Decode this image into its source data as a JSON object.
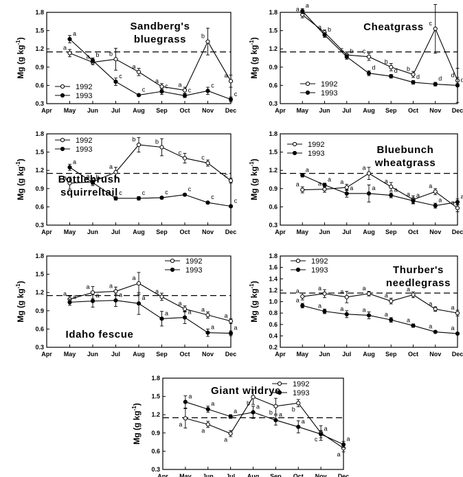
{
  "figure": {
    "ylabel": "Mg (g kg",
    "ylabel_sup": "-1",
    "ylabel_close": ")"
  },
  "chart_data": [
    {
      "type": "line",
      "title_lines": [
        "Sandberg's",
        "bluegrass"
      ],
      "categories": [
        "Apr",
        "May",
        "Jun",
        "Jul",
        "Aug",
        "Sep",
        "Oct",
        "Nov",
        "Dec"
      ],
      "ylim": [
        0.3,
        1.8
      ],
      "yticks": [
        "0.3",
        "0.6",
        "0.9",
        "1.2",
        "1.5",
        "1.8"
      ],
      "reference_line": 1.15,
      "legend": {
        "position": "bottom-left"
      },
      "series": [
        {
          "name": "1992",
          "marker": "open",
          "x": [
            1,
            2,
            3,
            4,
            5,
            6,
            7,
            8
          ],
          "values": [
            1.13,
            0.98,
            1.03,
            0.82,
            0.58,
            0.52,
            1.32,
            0.67
          ],
          "errors": [
            0.06,
            0.04,
            0.18,
            0.06,
            0.05,
            0.05,
            0.22,
            0.1
          ],
          "labels": [
            "a",
            "a",
            "b",
            "a",
            "a",
            "a",
            "b",
            "a"
          ]
        },
        {
          "name": "1993",
          "marker": "filled",
          "x": [
            1,
            2,
            3,
            4,
            5,
            6,
            7,
            8
          ],
          "values": [
            1.36,
            1.01,
            0.66,
            0.44,
            0.5,
            0.43,
            0.51,
            0.37
          ],
          "errors": [
            0.06,
            0.04,
            0.06,
            0.02,
            0.05,
            0.03,
            0.06,
            0.04
          ],
          "labels": [
            "a",
            "b",
            "c",
            "c",
            "c",
            "c",
            "c",
            "c"
          ]
        }
      ]
    },
    {
      "type": "line",
      "title_lines": [
        "Cheatgrass"
      ],
      "categories": [
        "Apr",
        "May",
        "Jun",
        "Jul",
        "Aug",
        "Sep",
        "Oct",
        "Nov",
        "Dec"
      ],
      "ylim": [
        0.3,
        1.8
      ],
      "yticks": [
        "0.3",
        "0.6",
        "0.9",
        "1.2",
        "1.5",
        "1.8"
      ],
      "reference_line": 1.15,
      "legend": {
        "position": "bottom-center"
      },
      "series": [
        {
          "name": "1992",
          "marker": "open",
          "x": [
            1,
            2,
            3,
            4,
            5,
            6,
            7,
            8
          ],
          "values": [
            1.76,
            1.47,
            1.1,
            1.07,
            0.9,
            0.78,
            1.53,
            0.68
          ],
          "errors": [
            0.05,
            0.04,
            0.05,
            0.06,
            0.06,
            0.05,
            0.4,
            0.05
          ],
          "labels": [
            "a",
            "a",
            "c",
            "c",
            "b",
            "b",
            "c",
            "d"
          ]
        },
        {
          "name": "1993",
          "marker": "filled",
          "x": [
            1,
            2,
            3,
            4,
            5,
            6,
            7,
            8
          ],
          "values": [
            1.82,
            1.43,
            1.07,
            0.8,
            0.75,
            0.65,
            0.62,
            0.6
          ],
          "errors": [
            0.04,
            0.04,
            0.04,
            0.04,
            0.03,
            0.03,
            0.03,
            0.28
          ],
          "labels": [
            "a",
            "b",
            "b",
            "d",
            "d",
            "d",
            "d",
            "d"
          ]
        }
      ]
    },
    {
      "type": "line",
      "title_lines": [
        "Bottlebrush",
        "squirreltail"
      ],
      "categories": [
        "Apr",
        "May",
        "Jun",
        "Jul",
        "Aug",
        "Sep",
        "Oct",
        "Nov",
        "Dec"
      ],
      "ylim": [
        0.3,
        1.8
      ],
      "yticks": [
        "0.3",
        "0.6",
        "0.9",
        "1.2",
        "1.5",
        "1.8"
      ],
      "reference_line": 1.15,
      "legend": {
        "position": "top-left"
      },
      "series": [
        {
          "name": "1992",
          "marker": "open",
          "x": [
            1,
            2,
            3,
            4,
            5,
            6,
            7,
            8
          ],
          "values": [
            0.99,
            1.01,
            1.17,
            1.62,
            1.58,
            1.4,
            1.32,
            1.03
          ],
          "errors": [
            0.1,
            0.06,
            0.08,
            0.12,
            0.14,
            0.08,
            0.05,
            0.04
          ],
          "labels": [
            "a",
            "a",
            "a",
            "b",
            "b",
            "c",
            "c",
            "c"
          ]
        },
        {
          "name": "1993",
          "marker": "filled",
          "x": [
            1,
            2,
            3,
            4,
            5,
            6,
            7,
            8
          ],
          "values": [
            1.25,
            1.0,
            0.74,
            0.74,
            0.75,
            0.8,
            0.67,
            0.61
          ],
          "errors": [
            0.05,
            0.03,
            0.03,
            0.03,
            0.02,
            0.02,
            0.02,
            0.02
          ],
          "labels": [
            "a",
            "b",
            "c",
            "c",
            "c",
            "c",
            "c",
            "c"
          ]
        }
      ]
    },
    {
      "type": "line",
      "title_lines": [
        "Bluebunch",
        "wheatgrass"
      ],
      "categories": [
        "Apr",
        "May",
        "Jun",
        "Jul",
        "Aug",
        "Sep",
        "Oct",
        "Nov",
        "Dec"
      ],
      "ylim": [
        0.3,
        1.8
      ],
      "yticks": [
        "0.3",
        "0.6",
        "0.9",
        "1.2",
        "1.5",
        "1.8"
      ],
      "reference_line": 1.15,
      "legend": {
        "position": "top-left"
      },
      "series": [
        {
          "name": "1992",
          "marker": "open",
          "x": [
            1,
            2,
            3,
            4,
            5,
            6,
            7,
            8
          ],
          "values": [
            0.88,
            0.89,
            0.92,
            1.15,
            0.93,
            0.72,
            0.85,
            0.58
          ],
          "errors": [
            0.05,
            0.05,
            0.05,
            0.1,
            0.07,
            0.06,
            0.05,
            0.06
          ],
          "labels": [
            "a",
            "a",
            "a",
            "a",
            "a",
            "a",
            "a",
            "a"
          ]
        },
        {
          "name": "1993",
          "marker": "filled",
          "x": [
            1,
            2,
            3,
            4,
            5,
            6,
            7,
            8
          ],
          "values": [
            1.12,
            0.96,
            0.82,
            0.82,
            0.79,
            0.7,
            0.62,
            0.68
          ],
          "errors": [
            0.03,
            0.03,
            0.06,
            0.14,
            0.04,
            0.05,
            0.04,
            0.05
          ],
          "labels": [
            "a",
            "a",
            "a",
            "a",
            "a",
            "a",
            "a",
            "a"
          ]
        }
      ]
    },
    {
      "type": "line",
      "title_lines": [
        "Idaho fescue"
      ],
      "categories": [
        "Apr",
        "May",
        "Jun",
        "Jul",
        "Aug",
        "Sep",
        "Oct",
        "Nov",
        "Dec"
      ],
      "ylim": [
        0.3,
        1.8
      ],
      "yticks": [
        "0.3",
        "0.6",
        "0.9",
        "1.2",
        "1.5",
        "1.8"
      ],
      "reference_line": 1.15,
      "legend": {
        "position": "top-right"
      },
      "series": [
        {
          "name": "1992",
          "marker": "open",
          "x": [
            1,
            2,
            3,
            4,
            5,
            6,
            7,
            8
          ],
          "values": [
            1.09,
            1.2,
            1.22,
            1.35,
            1.13,
            0.93,
            0.83,
            0.73
          ],
          "errors": [
            0.05,
            0.1,
            0.07,
            0.18,
            0.06,
            0.05,
            0.05,
            0.04
          ],
          "labels": [
            "a",
            "a",
            "a",
            "a",
            "a",
            "a",
            "a",
            "a"
          ]
        },
        {
          "name": "1993",
          "marker": "filled",
          "x": [
            1,
            2,
            3,
            4,
            5,
            6,
            7,
            8
          ],
          "values": [
            1.04,
            1.06,
            1.07,
            1.02,
            0.77,
            0.79,
            0.54,
            0.53
          ],
          "errors": [
            0.05,
            0.1,
            0.1,
            0.18,
            0.12,
            0.1,
            0.06,
            0.04
          ],
          "labels": [
            "a",
            "a",
            "a",
            "a",
            "a",
            "a",
            "a",
            "a"
          ]
        }
      ]
    },
    {
      "type": "line",
      "title_lines": [
        "Thurber's",
        "needlegrass"
      ],
      "categories": [
        "Apr",
        "May",
        "Jun",
        "Jul",
        "Aug",
        "Sep",
        "Oct",
        "Nov",
        "Dec"
      ],
      "ylim": [
        0.2,
        1.8
      ],
      "yticks": [
        "0.2",
        "0.4",
        "0.6",
        "0.8",
        "1.0",
        "1.2",
        "1.4",
        "1.6",
        "1.8"
      ],
      "reference_line": 1.15,
      "legend": {
        "position": "top-left"
      },
      "series": [
        {
          "name": "1992",
          "marker": "open",
          "x": [
            1,
            2,
            3,
            4,
            5,
            6,
            7,
            8
          ],
          "values": [
            1.09,
            1.14,
            1.08,
            1.14,
            1.01,
            1.12,
            0.87,
            0.8
          ],
          "errors": [
            0.06,
            0.07,
            0.1,
            0.04,
            0.05,
            0.05,
            0.04,
            0.05
          ],
          "labels": [
            "a",
            "a",
            "a",
            "a",
            "a",
            "a",
            "a",
            "a"
          ]
        },
        {
          "name": "1993",
          "marker": "filled",
          "x": [
            1,
            2,
            3,
            4,
            5,
            6,
            7,
            8
          ],
          "values": [
            0.93,
            0.83,
            0.78,
            0.76,
            0.68,
            0.58,
            0.47,
            0.44
          ],
          "errors": [
            0.04,
            0.04,
            0.06,
            0.06,
            0.04,
            0.03,
            0.02,
            0.02
          ],
          "labels": [
            "a",
            "a",
            "a",
            "a",
            "a",
            "a",
            "a",
            "a"
          ]
        }
      ]
    },
    {
      "type": "line",
      "title_lines": [
        "Giant wildrye"
      ],
      "categories": [
        "Apr",
        "May",
        "Jun",
        "Jul",
        "Aug",
        "Sep",
        "Oct",
        "Nov",
        "Dec"
      ],
      "ylim": [
        0.3,
        1.8
      ],
      "yticks": [
        "0.3",
        "0.6",
        "0.9",
        "1.2",
        "1.5",
        "1.8"
      ],
      "reference_line": 1.15,
      "legend": {
        "position": "top-right"
      },
      "series": [
        {
          "name": "1992",
          "marker": "open",
          "x": [
            1,
            2,
            3,
            4,
            5,
            6,
            7,
            8
          ],
          "values": [
            1.14,
            1.04,
            0.89,
            1.49,
            1.34,
            1.39,
            0.9,
            0.65
          ],
          "errors": [
            0.16,
            0.05,
            0.05,
            0.12,
            0.13,
            0.06,
            0.12,
            0.06
          ],
          "labels": [
            "a",
            "a",
            "a",
            "b",
            "b",
            "b",
            "c",
            "a"
          ]
        },
        {
          "name": "1993",
          "marker": "filled",
          "x": [
            1,
            2,
            3,
            4,
            5,
            6,
            7,
            8
          ],
          "values": [
            1.41,
            1.29,
            1.17,
            1.24,
            1.11,
            1.0,
            0.88,
            0.71
          ],
          "errors": [
            0.1,
            0.05,
            0.03,
            0.1,
            0.08,
            0.1,
            0.06,
            0.05
          ],
          "labels": [
            "a",
            "a",
            "a",
            "a",
            "a",
            "a",
            "a",
            "a"
          ]
        }
      ]
    }
  ]
}
